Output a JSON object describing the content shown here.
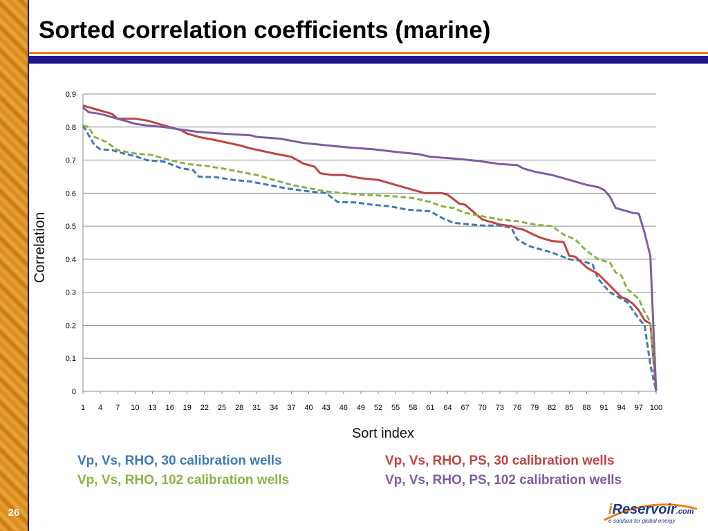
{
  "slide": {
    "title": "Sorted correlation coefficients (marine)",
    "page_number": "26"
  },
  "logo": {
    "prefix": "i",
    "name": "Reservoir",
    "suffix": ".com",
    "tagline": "e-solution for global energy"
  },
  "legend": [
    {
      "label": "Vp, Vs, RHO, 30 calibration wells",
      "color": "#3f7ab5"
    },
    {
      "label": "Vp, Vs, RHO, PS, 30 calibration wells",
      "color": "#bf4441"
    },
    {
      "label": "Vp, Vs, RHO, 102 calibration wells",
      "color": "#8cb244"
    },
    {
      "label": "Vp, Vs, RHO, PS, 102 calibration wells",
      "color": "#7c5ea3"
    }
  ],
  "chart_data": {
    "type": "line",
    "xlabel": "Sort index",
    "ylabel": "Correlation",
    "ylim": [
      0,
      0.9
    ],
    "y_ticks": [
      "0",
      "0.1",
      "0.2",
      "0.3",
      "0.4",
      "0.5",
      "0.6",
      "0.7",
      "0.8",
      "0.9"
    ],
    "x_range": [
      1,
      100
    ],
    "x_ticks": [
      "1",
      "4",
      "7",
      "10",
      "13",
      "16",
      "19",
      "22",
      "25",
      "28",
      "31",
      "34",
      "37",
      "40",
      "43",
      "46",
      "49",
      "52",
      "55",
      "58",
      "61",
      "64",
      "67",
      "70",
      "73",
      "76",
      "79",
      "82",
      "85",
      "88",
      "91",
      "94",
      "97",
      "100"
    ],
    "grid": true,
    "legend_position": "bottom",
    "series": [
      {
        "name": "Vp, Vs, RHO, 30 calibration wells",
        "color": "#3f7ab5",
        "dash": true,
        "x": [
          1,
          2,
          3,
          4,
          6,
          8,
          10,
          12,
          15,
          18,
          20,
          21,
          24,
          27,
          30,
          33,
          36,
          40,
          43,
          45,
          48,
          51,
          54,
          57,
          61,
          63,
          65,
          68,
          70,
          73,
          75,
          76,
          78,
          80,
          82,
          85,
          87,
          89,
          90,
          92,
          95,
          97,
          98,
          99,
          100
        ],
        "y": [
          0.805,
          0.775,
          0.745,
          0.733,
          0.73,
          0.72,
          0.712,
          0.7,
          0.695,
          0.675,
          0.67,
          0.65,
          0.648,
          0.64,
          0.635,
          0.625,
          0.615,
          0.605,
          0.6,
          0.573,
          0.572,
          0.565,
          0.56,
          0.55,
          0.545,
          0.525,
          0.51,
          0.505,
          0.502,
          0.502,
          0.495,
          0.46,
          0.44,
          0.43,
          0.42,
          0.4,
          0.395,
          0.385,
          0.34,
          0.3,
          0.27,
          0.22,
          0.2,
          0.08,
          0.0
        ]
      },
      {
        "name": "Vp, Vs, RHO, PS, 30 calibration wells",
        "color": "#bf4441",
        "dash": false,
        "x": [
          1,
          3,
          6,
          7,
          10,
          12,
          15,
          18,
          19,
          21,
          24,
          28,
          30,
          34,
          37,
          39,
          41,
          42,
          44,
          46,
          49,
          52,
          55,
          58,
          60,
          61,
          63,
          64,
          66,
          67,
          70,
          73,
          75,
          76,
          77,
          79,
          80,
          82,
          84,
          85,
          86,
          88,
          90,
          92,
          94,
          95,
          96,
          97,
          98,
          99,
          100
        ],
        "y": [
          0.865,
          0.855,
          0.84,
          0.825,
          0.825,
          0.82,
          0.805,
          0.79,
          0.78,
          0.77,
          0.76,
          0.745,
          0.735,
          0.72,
          0.71,
          0.69,
          0.68,
          0.66,
          0.655,
          0.655,
          0.645,
          0.64,
          0.625,
          0.61,
          0.6,
          0.6,
          0.6,
          0.595,
          0.568,
          0.565,
          0.52,
          0.505,
          0.5,
          0.493,
          0.49,
          0.473,
          0.465,
          0.455,
          0.452,
          0.41,
          0.408,
          0.375,
          0.355,
          0.32,
          0.285,
          0.278,
          0.265,
          0.245,
          0.215,
          0.205,
          0.0
        ]
      },
      {
        "name": "Vp, Vs, RHO, 102 calibration wells",
        "color": "#8cb244",
        "dash": true,
        "x": [
          1,
          2,
          3,
          5,
          7,
          10,
          13,
          16,
          19,
          22,
          25,
          28,
          31,
          34,
          37,
          40,
          43,
          46,
          49,
          52,
          55,
          58,
          61,
          63,
          65,
          67,
          70,
          73,
          76,
          79,
          82,
          84,
          86,
          88,
          90,
          92,
          93,
          94,
          95,
          96,
          97,
          98,
          99,
          100
        ],
        "y": [
          0.805,
          0.8,
          0.77,
          0.755,
          0.73,
          0.72,
          0.715,
          0.7,
          0.688,
          0.683,
          0.675,
          0.665,
          0.655,
          0.64,
          0.625,
          0.615,
          0.605,
          0.6,
          0.595,
          0.593,
          0.59,
          0.585,
          0.573,
          0.56,
          0.555,
          0.54,
          0.53,
          0.52,
          0.515,
          0.505,
          0.5,
          0.475,
          0.46,
          0.425,
          0.4,
          0.39,
          0.36,
          0.35,
          0.31,
          0.295,
          0.28,
          0.24,
          0.21,
          0.0
        ]
      },
      {
        "name": "Vp, Vs, RHO, PS, 102 calibration wells",
        "color": "#7c5ea3",
        "dash": false,
        "x": [
          1,
          2,
          4,
          6,
          8,
          10,
          12,
          15,
          19,
          21,
          25,
          30,
          31,
          35,
          39,
          43,
          47,
          51,
          55,
          59,
          61,
          65,
          69,
          73,
          76,
          77,
          79,
          82,
          85,
          88,
          90,
          91,
          92,
          93,
          95,
          96,
          97,
          98,
          99,
          100
        ],
        "y": [
          0.86,
          0.845,
          0.84,
          0.83,
          0.82,
          0.81,
          0.805,
          0.8,
          0.79,
          0.785,
          0.78,
          0.775,
          0.77,
          0.765,
          0.752,
          0.745,
          0.738,
          0.733,
          0.725,
          0.718,
          0.71,
          0.705,
          0.698,
          0.688,
          0.685,
          0.675,
          0.665,
          0.655,
          0.64,
          0.625,
          0.618,
          0.61,
          0.59,
          0.555,
          0.545,
          0.54,
          0.538,
          0.48,
          0.41,
          0.0
        ]
      }
    ]
  }
}
